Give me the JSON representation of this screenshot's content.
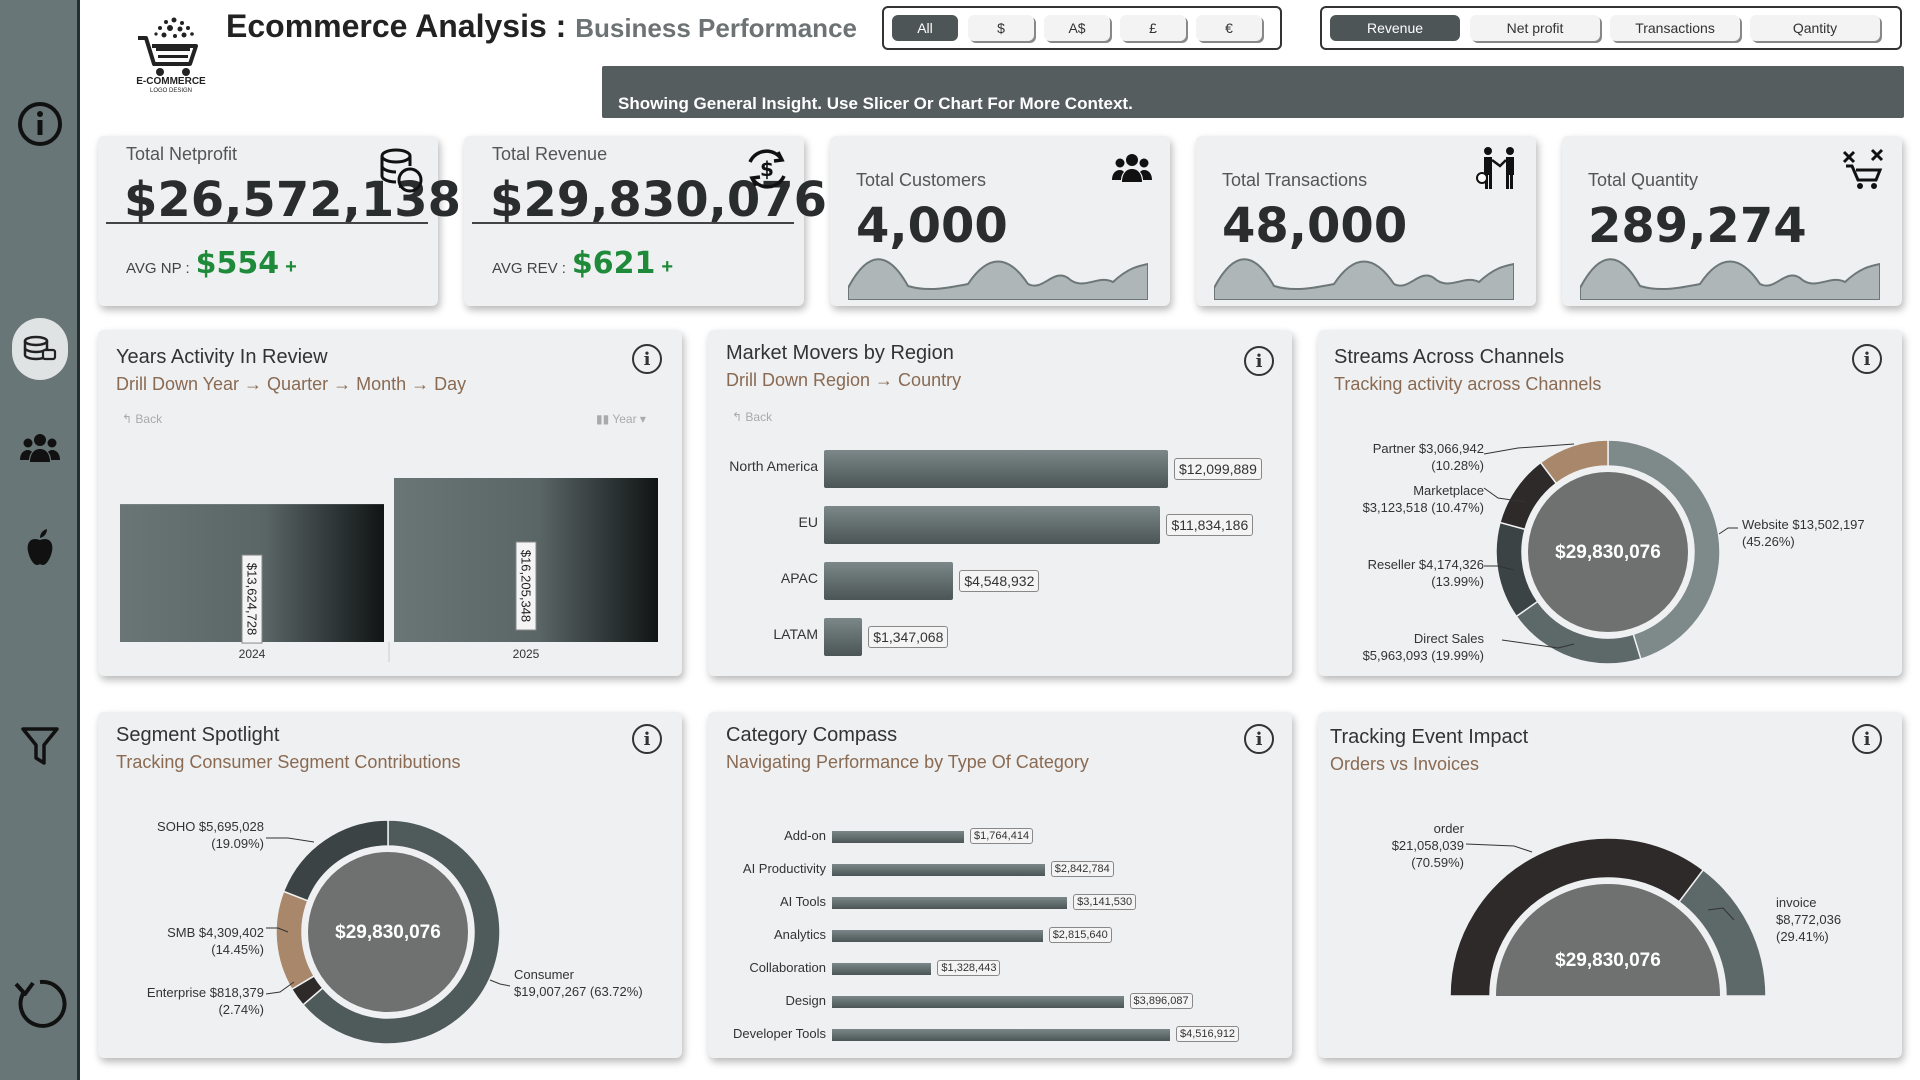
{
  "header": {
    "title_main": "Ecommerce Analysis : ",
    "title_sub": "Business Performance",
    "logo_text": "E-COMMERCE",
    "logo_subtext": "LOGO DESIGN",
    "banner_text": "Showing General Insight. Use Slicer Or Chart For More Context."
  },
  "currency_slicer": {
    "options": [
      "All",
      "$",
      "A$",
      "£",
      "€"
    ],
    "selected": "All"
  },
  "metric_slicer": {
    "options": [
      "Revenue",
      "Net profit",
      "Transactions",
      "Qantity"
    ],
    "selected": "Revenue"
  },
  "sidebar": {
    "items": [
      "info-icon",
      "database-icon",
      "customers-icon",
      "apple-icon",
      "filter-icon",
      "refresh-icon"
    ]
  },
  "kpis": {
    "netprofit": {
      "label": "Total Netprofit",
      "value": "$26,572,138",
      "avg_label": "AVG NP :",
      "avg_value": "$554",
      "trend": "+"
    },
    "revenue": {
      "label": "Total Revenue",
      "value": "$29,830,076",
      "avg_label": "AVG REV :",
      "avg_value": "$621",
      "trend": "+"
    },
    "customers": {
      "label": "Total Customers",
      "value": "4,000"
    },
    "transactions": {
      "label": "Total Transactions",
      "value": "48,000"
    },
    "quantity": {
      "label": "Total Quantity",
      "value": "289,274"
    }
  },
  "years_panel": {
    "title": "Years Activity In Review",
    "subtitle": "Drill Down Year → Quarter → Month → Day",
    "back_label": "Back",
    "level_label": "Year"
  },
  "region_panel": {
    "title": "Market Movers by Region",
    "subtitle": "Drill Down Region → Country",
    "back_label": "Back"
  },
  "channels_panel": {
    "title": "Streams Across Channels",
    "subtitle": "Tracking activity across Channels"
  },
  "segment_panel": {
    "title": "Segment Spotlight",
    "subtitle": "Tracking Consumer Segment Contributions"
  },
  "category_panel": {
    "title": "Category Compass",
    "subtitle": "Navigating Performance by Type Of Category"
  },
  "event_panel": {
    "title": "Tracking Event Impact",
    "subtitle": "Orders vs Invoices"
  },
  "colors": {
    "accent_dark": "#4d5556",
    "positive": "#1f8a3a",
    "subtitle_brown": "#8a6a52",
    "slice_tan": "#a8876b",
    "slice_dark": "#2f2a2a"
  },
  "chart_data": [
    {
      "id": "years",
      "type": "bar",
      "title": "Years Activity In Review",
      "categories": [
        "2024",
        "2025"
      ],
      "values": [
        13624728,
        16205348
      ],
      "labels": [
        "$13,624,728",
        "$16,205,348"
      ],
      "ylim": [
        0,
        16205348
      ]
    },
    {
      "id": "region",
      "type": "bar",
      "orientation": "horizontal",
      "title": "Market Movers by Region",
      "categories": [
        "North America",
        "EU",
        "APAC",
        "LATAM"
      ],
      "values": [
        12099889,
        11834186,
        4548932,
        1347068
      ],
      "labels": [
        "$12,099,889",
        "$11,834,186",
        "$4,548,932",
        "$1,347,068"
      ]
    },
    {
      "id": "channels",
      "type": "pie",
      "title": "Streams Across Channels",
      "center_label": "$29,830,076",
      "slices": [
        {
          "name": "Website",
          "value": 13502197,
          "value_label": "$13,502,197",
          "pct": "(45.26%)"
        },
        {
          "name": "Direct Sales",
          "value": 5963093,
          "value_label": "$5,963,093",
          "pct": "(19.99%)"
        },
        {
          "name": "Reseller",
          "value": 4174326,
          "value_label": "$4,174,326",
          "pct": "(13.99%)"
        },
        {
          "name": "Marketplace",
          "value": 3123518,
          "value_label": "$3,123,518",
          "pct": "(10.47%)"
        },
        {
          "name": "Partner",
          "value": 3066942,
          "value_label": "$3,066,942",
          "pct": "(10.28%)"
        }
      ]
    },
    {
      "id": "segment",
      "type": "pie",
      "title": "Segment Spotlight",
      "center_label": "$29,830,076",
      "slices": [
        {
          "name": "Consumer",
          "value": 19007267,
          "value_label": "$19,007,267",
          "pct": "(63.72%)"
        },
        {
          "name": "Enterprise",
          "value": 818379,
          "value_label": "$818,379",
          "pct": "(2.74%)"
        },
        {
          "name": "SMB",
          "value": 4309402,
          "value_label": "$4,309,402",
          "pct": "(14.45%)"
        },
        {
          "name": "SOHO",
          "value": 5695028,
          "value_label": "$5,695,028",
          "pct": "(19.09%)"
        }
      ]
    },
    {
      "id": "category",
      "type": "bar",
      "orientation": "horizontal",
      "title": "Category Compass",
      "categories": [
        "Add-on",
        "AI Productivity",
        "AI Tools",
        "Analytics",
        "Collaboration",
        "Design",
        "Developer Tools"
      ],
      "values": [
        1764414,
        2842784,
        3141530,
        2815640,
        1328443,
        3896087,
        4516912
      ],
      "labels": [
        "$1,764,414",
        "$2,842,784",
        "$3,141,530",
        "$2,815,640",
        "$1,328,443",
        "$3,896,087",
        "$4,516,912"
      ]
    },
    {
      "id": "events",
      "type": "pie",
      "title": "Tracking Event Impact",
      "center_label": "$29,830,076",
      "slices": [
        {
          "name": "order",
          "value": 21058039,
          "value_label": "$21,058,039",
          "pct": "(70.59%)"
        },
        {
          "name": "invoice",
          "value": 8772036,
          "value_label": "$8,772,036",
          "pct": "(29.41%)"
        }
      ]
    }
  ]
}
